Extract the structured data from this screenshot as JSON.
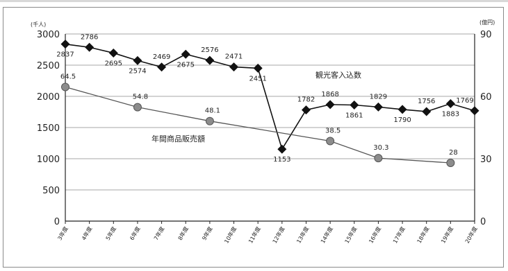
{
  "chart_data": {
    "type": "line",
    "left_axis_unit": "(千人)",
    "right_axis_unit": "(億円)",
    "left_ticks": [
      "0",
      "500",
      "1000",
      "1500",
      "2000",
      "2500",
      "3000"
    ],
    "right_ticks": [
      "0",
      "30",
      "60",
      "90"
    ],
    "ylim_left": [
      0,
      3000
    ],
    "ylim_right": [
      0,
      90
    ],
    "grid": true,
    "categories": [
      "3年度",
      "4年度",
      "5年度",
      "6年度",
      "7年度",
      "8年度",
      "9年度",
      "10年度",
      "11年度",
      "12年度",
      "13年度",
      "14年度",
      "15年度",
      "16年度",
      "17年度",
      "18年度",
      "19年度",
      "20年度"
    ],
    "series": [
      {
        "name": "観光客入込数",
        "axis": "left",
        "marker": "diamond",
        "values": [
          2837,
          2786,
          2695,
          2574,
          2469,
          2675,
          2576,
          2471,
          2451,
          1153,
          1782,
          1868,
          1861,
          1829,
          1790,
          1756,
          1883,
          1769
        ],
        "labels": [
          "2837",
          "2786",
          "2695",
          "2574",
          "2469",
          "2675",
          "2576",
          "2471",
          "2451",
          "1153",
          "1782",
          "1868",
          "1861",
          "1829",
          "1790",
          "1756",
          "1883",
          "1769"
        ]
      },
      {
        "name": "年間商品販売額",
        "axis": "right",
        "marker": "circle",
        "points": [
          {
            "category": "3年度",
            "value": 64.5,
            "label": "64.5"
          },
          {
            "category": "6年度",
            "value": 54.8,
            "label": "54.8"
          },
          {
            "category": "9年度",
            "value": 48.1,
            "label": "48.1"
          },
          {
            "category": "14年度",
            "value": 38.5,
            "label": "38.5"
          },
          {
            "category": "16年度",
            "value": 30.3,
            "label": "30.3"
          },
          {
            "category": "19年度",
            "value": 28,
            "label": "28"
          }
        ]
      }
    ]
  }
}
